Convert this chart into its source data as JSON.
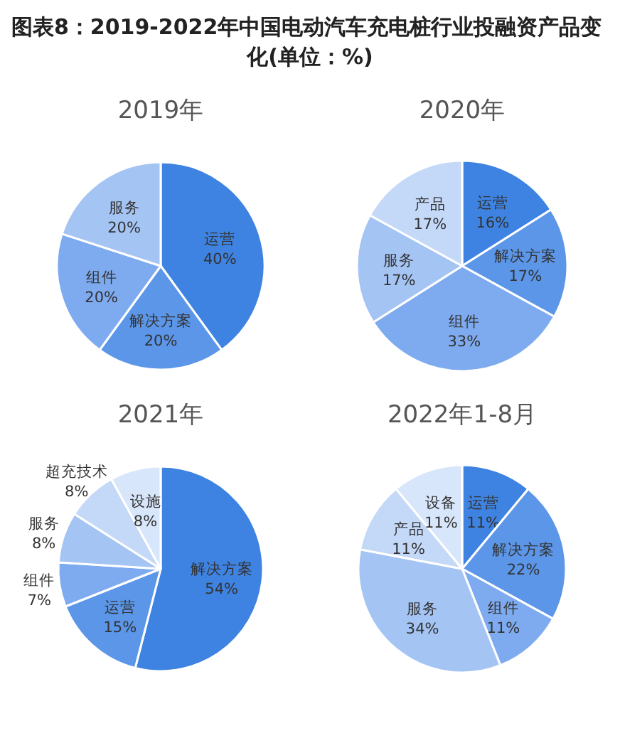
{
  "chart_data": [
    {
      "type": "pie",
      "title": "图表8：2019-2022年中国电动汽车充电桩行业投融资产品变化(单位：%)",
      "subtitle": "2019年",
      "categories": [
        "运营",
        "解决方案",
        "组件",
        "服务"
      ],
      "values": [
        40,
        20,
        20,
        20
      ],
      "colors": [
        "#3e83e1",
        "#5b96e8",
        "#7eabef",
        "#a4c4f4"
      ],
      "value_labels": [
        "40%",
        "20%",
        "20%",
        "20%"
      ]
    },
    {
      "type": "pie",
      "subtitle": "2020年",
      "categories": [
        "运营",
        "解决方案",
        "组件",
        "服务",
        "产品"
      ],
      "values": [
        16,
        17,
        33,
        17,
        17
      ],
      "colors": [
        "#3e83e1",
        "#5b96e8",
        "#7eabef",
        "#a4c4f4",
        "#c4d9f8"
      ],
      "value_labels": [
        "16%",
        "17%",
        "33%",
        "17%",
        "17%"
      ]
    },
    {
      "type": "pie",
      "subtitle": "2021年",
      "categories": [
        "解决方案",
        "运营",
        "组件",
        "服务",
        "超充技术",
        "设施"
      ],
      "values": [
        54,
        15,
        7,
        8,
        8,
        8
      ],
      "colors": [
        "#3e83e1",
        "#5b96e8",
        "#7eabef",
        "#a4c4f4",
        "#c4d9f8",
        "#d8e6fb"
      ],
      "value_labels": [
        "54%",
        "15%",
        "7%",
        "8%",
        "8%",
        "8%"
      ]
    },
    {
      "type": "pie",
      "subtitle": "2022年1-8月",
      "categories": [
        "运营",
        "解决方案",
        "组件",
        "服务",
        "产品",
        "设备"
      ],
      "values": [
        11,
        22,
        11,
        34,
        11,
        11
      ],
      "colors": [
        "#3e83e1",
        "#5b96e8",
        "#7eabef",
        "#a4c4f4",
        "#c4d9f8",
        "#d8e6fb"
      ],
      "value_labels": [
        "11%",
        "22%",
        "11%",
        "34%",
        "11%",
        "11%"
      ]
    }
  ]
}
